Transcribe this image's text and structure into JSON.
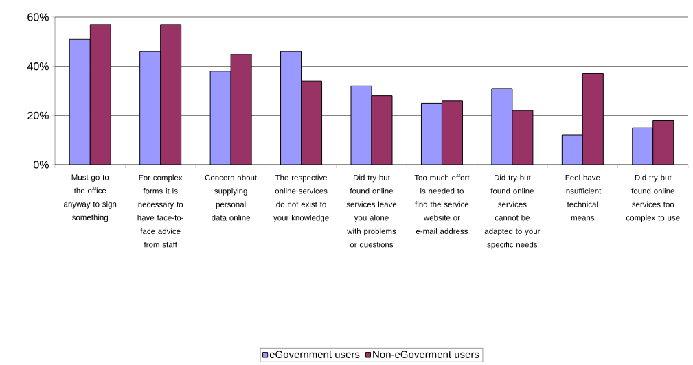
{
  "chart_data": {
    "type": "bar",
    "categories": [
      "Must go to the office anyway to sign something",
      "For complex forms it is necessary to have face-to-face advice from staff",
      "Concern about supplying personal data online",
      "The respective online services do not exist to your knowledge",
      "Did try but found online services leave you alone with problems or questions",
      "Too much effort is needed to find the service website or e-mail address",
      "Did try but found online services cannot be adapted to your specific needs",
      "Feel have insufficient technical means",
      "Did try but found online services too complex to use"
    ],
    "series": [
      {
        "name": "eGovernment users",
        "color": "#9999ff",
        "values": [
          51,
          46,
          38,
          46,
          32,
          25,
          31,
          12,
          15
        ]
      },
      {
        "name": "Non-eGoverment users",
        "color": "#993366",
        "values": [
          57,
          57,
          45,
          34,
          28,
          26,
          22,
          37,
          18
        ]
      }
    ],
    "ylim": [
      0,
      60
    ],
    "yticks": [
      {
        "value": 0,
        "label": "0%"
      },
      {
        "value": 20,
        "label": "20%"
      },
      {
        "value": 40,
        "label": "40%"
      },
      {
        "value": 60,
        "label": "60%"
      }
    ],
    "grid": "y",
    "legend": "bottom"
  }
}
